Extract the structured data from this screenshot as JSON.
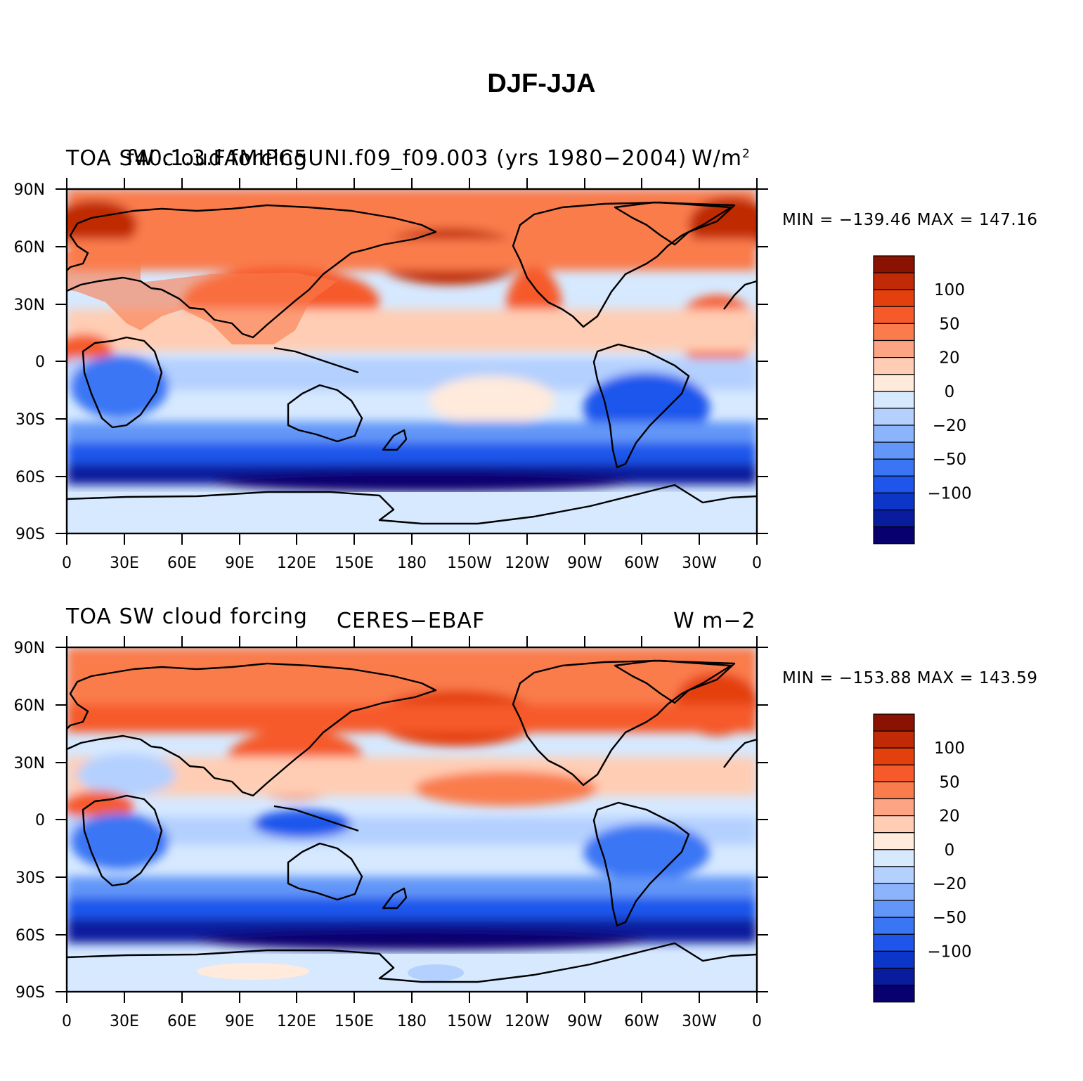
{
  "title": "DJF-JJA",
  "colors": {
    "ocean_low": "#d6e9ff",
    "land_outline": "#000000",
    "levels": [
      "#08006e",
      "#0a1c9e",
      "#0c36c8",
      "#1e56ec",
      "#3a76f4",
      "#6296f8",
      "#8cb4fc",
      "#b4d0fe",
      "#d6e9ff",
      "#ffeadc",
      "#ffcdb4",
      "#fca484",
      "#fa7c4c",
      "#f65a2a",
      "#e4400e",
      "#c02a06",
      "#8a1202"
    ]
  },
  "axes": {
    "x_ticks": [
      "0",
      "30E",
      "60E",
      "90E",
      "120E",
      "150E",
      "180",
      "150W",
      "120W",
      "90W",
      "60W",
      "30W",
      "0"
    ],
    "y_ticks": [
      "90N",
      "60N",
      "30N",
      "0",
      "30S",
      "60S",
      "90S"
    ]
  },
  "panels": [
    {
      "id": "model",
      "left_title": "TOA SW cloud forcing",
      "center_title": "f40.1.3.FAMIPC5UNI.f09_f09.003 (yrs 1980−2004)",
      "units": "W/m",
      "units_sup": "2",
      "min_max": "MIN = −139.46  MAX = 147.16",
      "colorbar_labels": [
        "100",
        "50",
        "20",
        "0",
        "−20",
        "−50",
        "−100"
      ]
    },
    {
      "id": "obs",
      "left_title": "TOA SW cloud forcing",
      "center_title": "CERES−EBAF",
      "units": "W m−2",
      "units_sup": "",
      "min_max": "MIN = −153.88  MAX = 143.59",
      "colorbar_labels": [
        "100",
        "50",
        "20",
        "0",
        "−20",
        "−50",
        "−100"
      ]
    }
  ]
}
